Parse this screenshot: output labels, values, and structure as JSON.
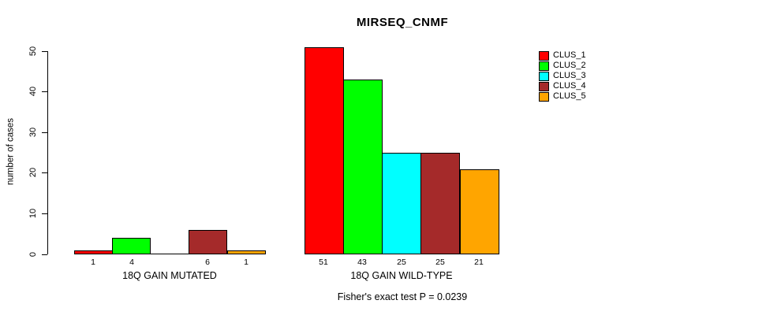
{
  "chart_data": {
    "type": "bar",
    "title": "MIRSEQ_CNMF",
    "ylabel": "number of cases",
    "subtitle": "Fisher's exact test P = 0.0239",
    "ylim": [
      0,
      50
    ],
    "yticks": [
      0,
      10,
      20,
      30,
      40,
      50
    ],
    "grid": false,
    "legend_position": "top-right",
    "bar_border_color": "#000000",
    "clusters": [
      {
        "name": "CLUS_1",
        "color": "#FF0000"
      },
      {
        "name": "CLUS_2",
        "color": "#00FF00"
      },
      {
        "name": "CLUS_3",
        "color": "#00FFFF"
      },
      {
        "name": "CLUS_4",
        "color": "#A52A2A"
      },
      {
        "name": "CLUS_5",
        "color": "#FFA500"
      }
    ],
    "groups": [
      {
        "label": "18Q GAIN MUTATED",
        "values": [
          1,
          4,
          0,
          6,
          1
        ],
        "bar_labels": [
          "1",
          "4",
          "",
          "6",
          "1"
        ]
      },
      {
        "label": "18Q GAIN WILD-TYPE",
        "values": [
          51,
          43,
          25,
          25,
          21
        ],
        "bar_labels": [
          "51",
          "43",
          "25",
          "25",
          "21"
        ]
      }
    ]
  }
}
